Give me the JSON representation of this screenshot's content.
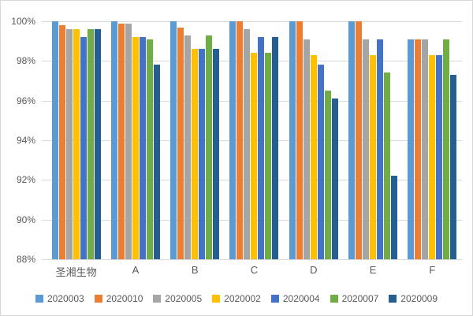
{
  "chart_data": {
    "type": "bar",
    "title": "",
    "xlabel": "",
    "ylabel": "",
    "categories": [
      "圣湘生物",
      "A",
      "B",
      "C",
      "D",
      "E",
      "F"
    ],
    "series": [
      {
        "name": "2020003",
        "color": "#5B9BD5",
        "values": [
          100,
          100,
          100,
          100,
          100,
          100,
          99.1
        ]
      },
      {
        "name": "2020010",
        "color": "#ED7D31",
        "values": [
          99.8,
          99.9,
          99.7,
          100,
          100,
          100,
          99.1
        ]
      },
      {
        "name": "2020005",
        "color": "#A5A5A5",
        "values": [
          99.6,
          99.9,
          99.3,
          99.6,
          99.1,
          99.1,
          99.1
        ]
      },
      {
        "name": "2020002",
        "color": "#FFC000",
        "values": [
          99.6,
          99.2,
          98.6,
          98.4,
          98.3,
          98.3,
          98.3
        ]
      },
      {
        "name": "2020004",
        "color": "#4472C4",
        "values": [
          99.2,
          99.2,
          98.6,
          99.2,
          97.8,
          99.1,
          98.3
        ]
      },
      {
        "name": "2020007",
        "color": "#70AD47",
        "values": [
          99.6,
          99.1,
          99.3,
          98.4,
          96.5,
          97.4,
          99.1
        ]
      },
      {
        "name": "2020009",
        "color": "#255E91",
        "values": [
          99.6,
          97.8,
          98.6,
          99.2,
          96.1,
          92.2,
          97.3
        ]
      }
    ],
    "ylim": [
      88,
      100
    ],
    "y_ticks": [
      "100%",
      "98%",
      "96%",
      "94%",
      "92%",
      "90%",
      "88%"
    ],
    "grid": true,
    "legend_position": "bottom"
  },
  "colors": {
    "gridline": "#D9D9D9",
    "axis_text": "#595959",
    "legend_text": "#595959",
    "border": "#D7D7D7",
    "background": "#FFFFFF"
  }
}
